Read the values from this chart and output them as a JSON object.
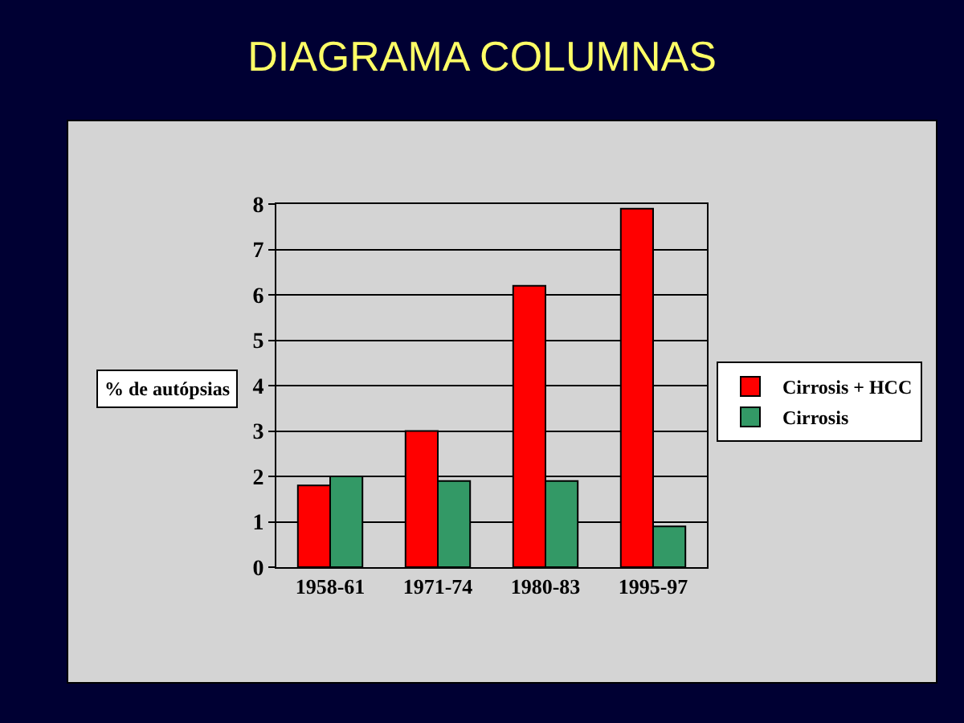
{
  "chart_data": {
    "type": "bar",
    "title": "DIAGRAMA COLUMNAS",
    "ylabel": "% de autópsias",
    "categories": [
      "1958-61",
      "1971-74",
      "1980-83",
      "1995-97"
    ],
    "series": [
      {
        "name": "Cirrosis + HCC",
        "color": "#ff0000",
        "values": [
          1.8,
          3.0,
          6.2,
          7.9
        ]
      },
      {
        "name": "Cirrosis",
        "color": "#339966",
        "values": [
          2.0,
          1.9,
          1.9,
          0.9
        ]
      }
    ],
    "ylim": [
      0,
      8
    ],
    "yticks": [
      0,
      1,
      2,
      3,
      4,
      5,
      6,
      7,
      8
    ],
    "grid": "y",
    "legend": "right"
  }
}
